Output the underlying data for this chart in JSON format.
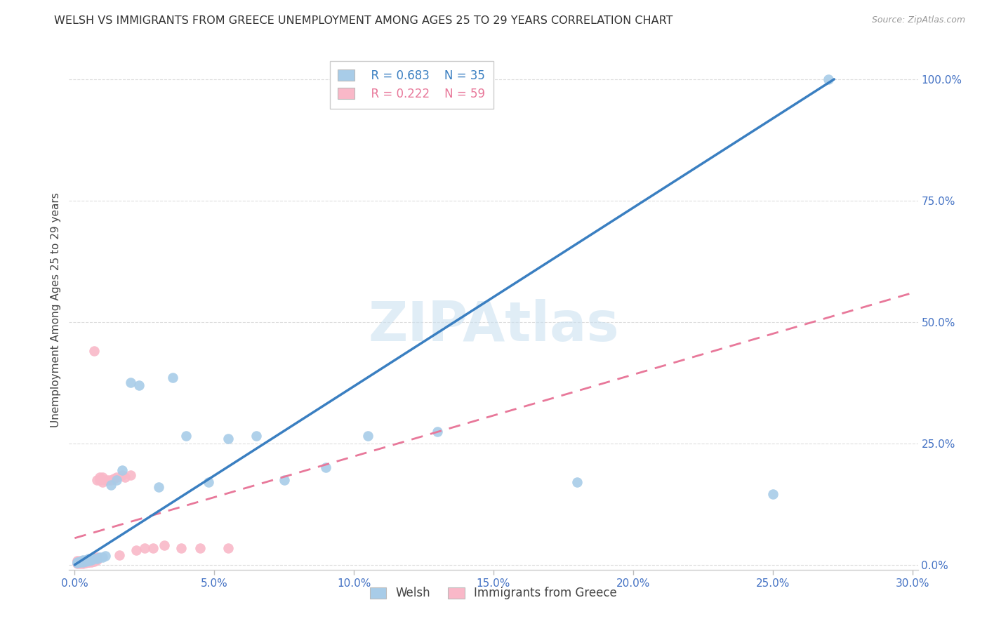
{
  "title": "WELSH VS IMMIGRANTS FROM GREECE UNEMPLOYMENT AMONG AGES 25 TO 29 YEARS CORRELATION CHART",
  "source": "Source: ZipAtlas.com",
  "xlabel_vals": [
    0.0,
    0.05,
    0.1,
    0.15,
    0.2,
    0.25,
    0.3
  ],
  "ylabel_vals": [
    0.0,
    0.25,
    0.5,
    0.75,
    1.0
  ],
  "ylabel_label": "Unemployment Among Ages 25 to 29 years",
  "welsh_R": 0.683,
  "welsh_N": 35,
  "greek_R": 0.222,
  "greek_N": 59,
  "welsh_color": "#a8cce8",
  "greek_color": "#f9b8c8",
  "welsh_line_color": "#3a7fc1",
  "greek_line_color": "#e8789a",
  "watermark": "ZIPAtlas",
  "welsh_line_x0": 0.0,
  "welsh_line_y0": 0.0,
  "welsh_line_x1": 0.272,
  "welsh_line_y1": 1.0,
  "greek_line_x0": 0.0,
  "greek_line_y0": 0.055,
  "greek_line_x1": 0.3,
  "greek_line_y1": 0.56,
  "welsh_scatter_x": [
    0.001,
    0.001,
    0.002,
    0.002,
    0.003,
    0.003,
    0.003,
    0.004,
    0.004,
    0.005,
    0.005,
    0.006,
    0.007,
    0.008,
    0.009,
    0.01,
    0.011,
    0.013,
    0.015,
    0.017,
    0.02,
    0.023,
    0.03,
    0.035,
    0.04,
    0.048,
    0.055,
    0.065,
    0.075,
    0.09,
    0.105,
    0.13,
    0.18,
    0.25,
    0.27
  ],
  "welsh_scatter_y": [
    0.004,
    0.006,
    0.005,
    0.007,
    0.005,
    0.008,
    0.01,
    0.007,
    0.01,
    0.008,
    0.012,
    0.01,
    0.013,
    0.012,
    0.015,
    0.015,
    0.018,
    0.165,
    0.175,
    0.195,
    0.375,
    0.37,
    0.16,
    0.385,
    0.265,
    0.17,
    0.26,
    0.265,
    0.175,
    0.2,
    0.265,
    0.275,
    0.17,
    0.145,
    1.0
  ],
  "greek_scatter_x": [
    0.001,
    0.001,
    0.001,
    0.001,
    0.001,
    0.001,
    0.002,
    0.002,
    0.002,
    0.002,
    0.002,
    0.002,
    0.003,
    0.003,
    0.003,
    0.003,
    0.003,
    0.003,
    0.004,
    0.004,
    0.004,
    0.004,
    0.004,
    0.005,
    0.005,
    0.005,
    0.005,
    0.005,
    0.006,
    0.006,
    0.006,
    0.006,
    0.007,
    0.007,
    0.007,
    0.007,
    0.008,
    0.008,
    0.008,
    0.009,
    0.009,
    0.01,
    0.01,
    0.011,
    0.012,
    0.013,
    0.014,
    0.015,
    0.016,
    0.017,
    0.018,
    0.02,
    0.022,
    0.025,
    0.028,
    0.032,
    0.038,
    0.045,
    0.055
  ],
  "greek_scatter_y": [
    0.003,
    0.004,
    0.005,
    0.006,
    0.007,
    0.008,
    0.003,
    0.004,
    0.005,
    0.006,
    0.007,
    0.008,
    0.003,
    0.004,
    0.005,
    0.006,
    0.007,
    0.008,
    0.004,
    0.005,
    0.006,
    0.007,
    0.008,
    0.005,
    0.006,
    0.007,
    0.008,
    0.009,
    0.006,
    0.007,
    0.008,
    0.01,
    0.007,
    0.01,
    0.015,
    0.44,
    0.01,
    0.015,
    0.175,
    0.175,
    0.18,
    0.17,
    0.18,
    0.175,
    0.175,
    0.175,
    0.178,
    0.18,
    0.02,
    0.185,
    0.18,
    0.185,
    0.03,
    0.035,
    0.035,
    0.04,
    0.035,
    0.035,
    0.035
  ],
  "xlim": [
    -0.002,
    0.302
  ],
  "ylim": [
    -0.01,
    1.06
  ],
  "legend_welsh_label": "Welsh",
  "legend_greek_label": "Immigrants from Greece"
}
